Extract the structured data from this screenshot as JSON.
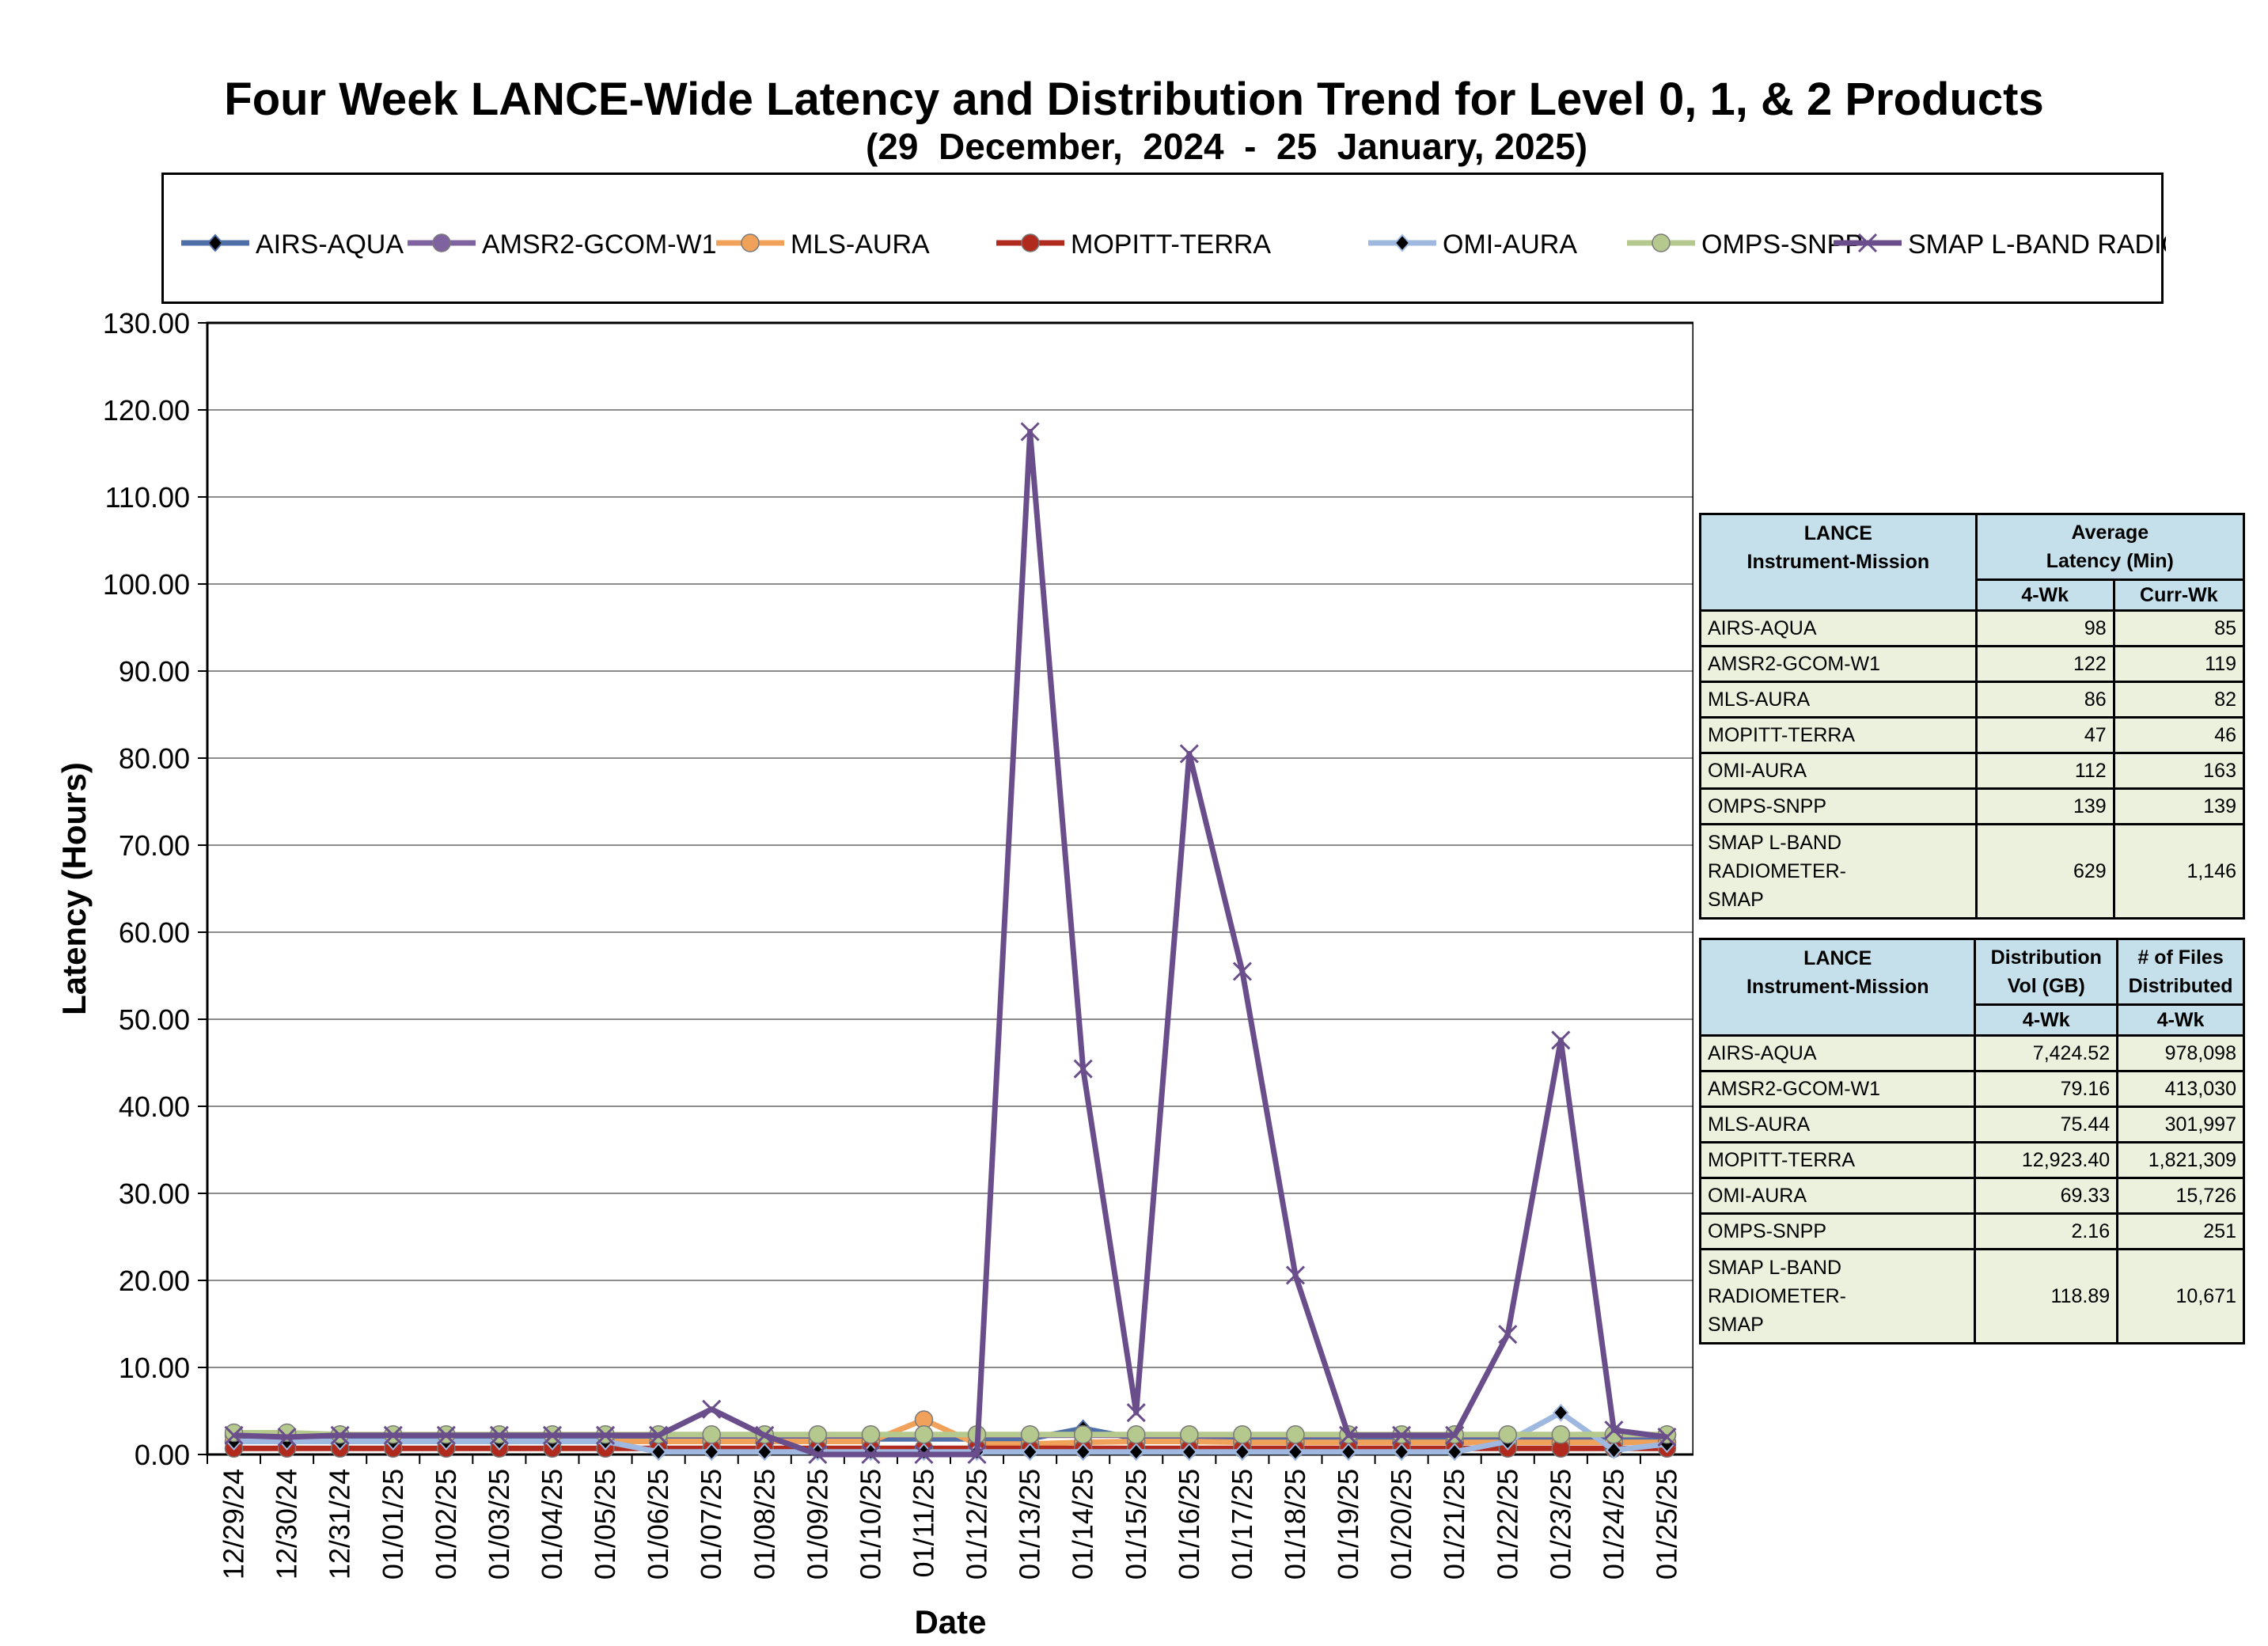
{
  "chart_data": {
    "type": "line",
    "title": "Four Week LANCE-Wide Latency and Distribution Trend for Level 0, 1, & 2 Products",
    "subtitle": "(29  December,  2024  -  25  January, 2025)",
    "xlabel": "Date",
    "ylabel": "Latency (Hours)",
    "ylim": [
      0,
      130
    ],
    "yticks": [
      "0.00",
      "10.00",
      "20.00",
      "30.00",
      "40.00",
      "50.00",
      "60.00",
      "70.00",
      "80.00",
      "90.00",
      "100.00",
      "110.00",
      "120.00",
      "130.00"
    ],
    "grid": true,
    "legend": "top",
    "categories": [
      "12/29/24",
      "12/30/24",
      "12/31/24",
      "01/01/25",
      "01/02/25",
      "01/03/25",
      "01/04/25",
      "01/05/25",
      "01/06/25",
      "01/07/25",
      "01/08/25",
      "01/09/25",
      "01/10/25",
      "01/11/25",
      "01/12/25",
      "01/13/25",
      "01/14/25",
      "01/15/25",
      "01/16/25",
      "01/17/25",
      "01/18/25",
      "01/19/25",
      "01/20/25",
      "01/21/25",
      "01/22/25",
      "01/23/25",
      "01/24/25",
      "01/25/25"
    ],
    "series": [
      {
        "name": "AIRS-AQUA",
        "color": "#4f6fa8",
        "marker": "diamond",
        "values": [
          1.8,
          1.8,
          1.8,
          1.8,
          1.8,
          1.8,
          1.8,
          1.8,
          1.8,
          1.8,
          1.8,
          1.8,
          1.8,
          1.8,
          1.8,
          1.8,
          3.0,
          1.8,
          1.8,
          1.8,
          1.8,
          1.8,
          1.8,
          1.8,
          1.8,
          1.8,
          1.8,
          1.8
        ]
      },
      {
        "name": "AMSR2-GCOM-W1",
        "color": "#7e63a0",
        "marker": "circle",
        "values": [
          2.2,
          2.2,
          2.2,
          2.2,
          2.2,
          2.2,
          2.2,
          2.2,
          2.2,
          2.2,
          2.2,
          2.2,
          2.2,
          2.2,
          2.2,
          2.2,
          2.2,
          2.2,
          2.2,
          2.2,
          2.2,
          2.2,
          2.2,
          2.2,
          2.2,
          2.2,
          2.2,
          2.2
        ]
      },
      {
        "name": "MLS-AURA",
        "color": "#f0a15a",
        "marker": "circle",
        "values": [
          1.5,
          1.5,
          1.5,
          1.5,
          1.5,
          1.5,
          1.5,
          1.5,
          1.5,
          1.5,
          1.5,
          1.5,
          1.5,
          4.0,
          1.2,
          1.2,
          1.4,
          1.5,
          1.5,
          1.4,
          1.4,
          1.4,
          1.4,
          1.4,
          1.4,
          1.4,
          1.4,
          1.4
        ]
      },
      {
        "name": "MOPITT-TERRA",
        "color": "#b02a1e",
        "marker": "circle",
        "values": [
          0.7,
          0.7,
          0.7,
          0.7,
          0.7,
          0.7,
          0.7,
          0.7,
          0.7,
          0.7,
          0.7,
          0.7,
          0.7,
          0.7,
          0.7,
          0.7,
          0.7,
          0.7,
          0.7,
          0.7,
          0.7,
          0.7,
          0.7,
          0.7,
          0.7,
          0.7,
          0.7,
          0.7
        ]
      },
      {
        "name": "OMI-AURA",
        "color": "#9fb8df",
        "marker": "diamond",
        "values": [
          1.5,
          1.5,
          1.5,
          1.5,
          1.5,
          1.5,
          1.5,
          1.5,
          0.3,
          0.3,
          0.3,
          0.3,
          0.3,
          0.3,
          0.3,
          0.3,
          0.3,
          0.3,
          0.3,
          0.3,
          0.3,
          0.3,
          0.3,
          0.3,
          1.5,
          4.8,
          0.5,
          1.2
        ]
      },
      {
        "name": "OMPS-SNPP",
        "color": "#b5c88e",
        "marker": "circle",
        "values": [
          2.5,
          2.5,
          2.3,
          2.3,
          2.3,
          2.3,
          2.3,
          2.3,
          2.3,
          2.3,
          2.3,
          2.3,
          2.3,
          2.3,
          2.3,
          2.3,
          2.3,
          2.3,
          2.3,
          2.3,
          2.3,
          2.3,
          2.3,
          2.3,
          2.3,
          2.3,
          2.3,
          2.3
        ]
      },
      {
        "name": "SMAP L-BAND RADIOMETER-SMAP",
        "color": "#6a4e8c",
        "marker": "x",
        "values": [
          2.2,
          2.0,
          2.2,
          2.2,
          2.2,
          2.2,
          2.2,
          2.2,
          2.2,
          5.2,
          2.2,
          0.0,
          0.0,
          0.0,
          0.0,
          117.5,
          44.3,
          4.8,
          80.5,
          55.5,
          20.6,
          2.2,
          2.2,
          2.2,
          13.8,
          47.6,
          2.8,
          2.0
        ]
      }
    ]
  },
  "latency_table": {
    "head_col1": [
      "LANCE",
      "Instrument-Mission"
    ],
    "head_col2": [
      "Average",
      "Latency (Min)"
    ],
    "sub_col2": "4-Wk",
    "sub_col3": "Curr-Wk",
    "rows": [
      {
        "name": "AIRS-AQUA",
        "a": "98",
        "b": "85"
      },
      {
        "name": "AMSR2-GCOM-W1",
        "a": "122",
        "b": "119"
      },
      {
        "name": "MLS-AURA",
        "a": "86",
        "b": "82"
      },
      {
        "name": "MOPITT-TERRA",
        "a": "47",
        "b": "46"
      },
      {
        "name": "OMI-AURA",
        "a": "112",
        "b": "163"
      },
      {
        "name": "OMPS-SNPP",
        "a": "139",
        "b": "139"
      }
    ],
    "last_row": {
      "name": [
        "SMAP L-BAND RADIOMETER-",
        "SMAP"
      ],
      "a": "629",
      "b": "1,146"
    }
  },
  "distribution_table": {
    "head_col1": [
      "LANCE",
      "Instrument-Mission"
    ],
    "head_col2": [
      "Distribution",
      "Vol (GB)"
    ],
    "head_col3": [
      "# of Files",
      "Distributed"
    ],
    "sub_col2": "4-Wk",
    "sub_col3": "4-Wk",
    "rows": [
      {
        "name": "AIRS-AQUA",
        "a": "7,424.52",
        "b": "978,098"
      },
      {
        "name": "AMSR2-GCOM-W1",
        "a": "79.16",
        "b": "413,030"
      },
      {
        "name": "MLS-AURA",
        "a": "75.44",
        "b": "301,997"
      },
      {
        "name": "MOPITT-TERRA",
        "a": "12,923.40",
        "b": "1,821,309"
      },
      {
        "name": "OMI-AURA",
        "a": "69.33",
        "b": "15,726"
      },
      {
        "name": "OMPS-SNPP",
        "a": "2.16",
        "b": "251"
      }
    ],
    "last_row": {
      "name": [
        "SMAP L-BAND RADIOMETER-",
        "SMAP"
      ],
      "a": "118.89",
      "b": "10,671"
    }
  }
}
